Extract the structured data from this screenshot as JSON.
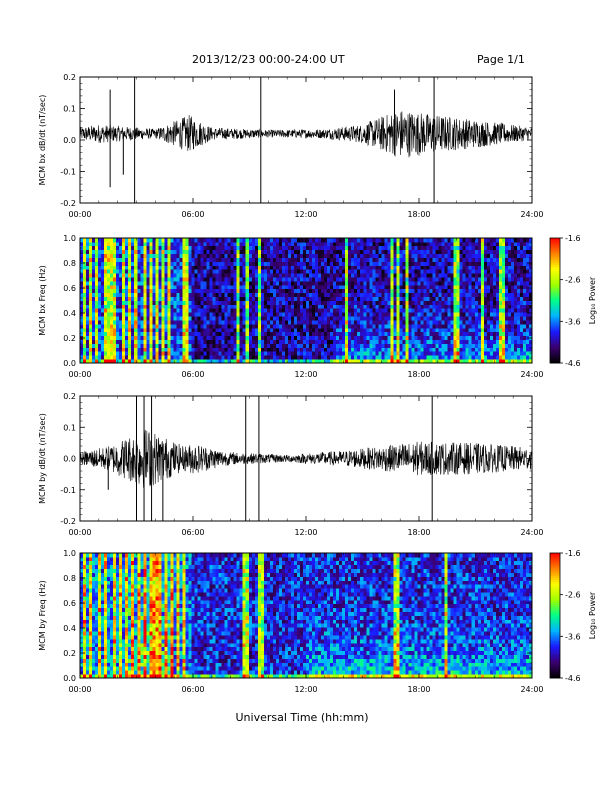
{
  "header": {
    "title": "2013/12/23  00:00-24:00 UT",
    "page": "Page 1/1"
  },
  "colors": {
    "trace": "#000000",
    "colormap": [
      "#000000",
      "#3a0070",
      "#1a1aff",
      "#00b4ff",
      "#00ff88",
      "#a0ff00",
      "#ffff00",
      "#ff8000",
      "#ff0000"
    ]
  },
  "chart_data": [
    {
      "type": "line",
      "title": "",
      "ylabel": "MCM bx dB/dt (nT/sec)",
      "xlabel": "",
      "xlim": [
        0,
        24
      ],
      "ylim": [
        -0.2,
        0.2
      ],
      "x_ticks": [
        "00:00",
        "06:00",
        "12:00",
        "18:00",
        "24:00"
      ],
      "y_ticks": [
        "0.2",
        "0.1",
        "0.0",
        "-0.1",
        "-0.2"
      ],
      "baseline": 0.02,
      "spikes": [
        {
          "x": 1.6,
          "y": 0.16
        },
        {
          "x": 1.6,
          "y": -0.15
        },
        {
          "x": 2.3,
          "y": -0.11
        },
        {
          "x": 2.9,
          "y": 0.2
        },
        {
          "x": 2.9,
          "y": -0.2
        },
        {
          "x": 9.6,
          "y": 0.2
        },
        {
          "x": 9.6,
          "y": -0.2
        },
        {
          "x": 16.7,
          "y": 0.16
        },
        {
          "x": 18.8,
          "y": 0.2
        },
        {
          "x": 18.8,
          "y": -0.2
        }
      ],
      "envelope": [
        {
          "x": 0,
          "amp": 0.02
        },
        {
          "x": 1.0,
          "amp": 0.03
        },
        {
          "x": 2.0,
          "amp": 0.025
        },
        {
          "x": 4.0,
          "amp": 0.015
        },
        {
          "x": 5.8,
          "amp": 0.06
        },
        {
          "x": 7.0,
          "amp": 0.02
        },
        {
          "x": 10.0,
          "amp": 0.012
        },
        {
          "x": 13.0,
          "amp": 0.015
        },
        {
          "x": 15.0,
          "amp": 0.03
        },
        {
          "x": 17.0,
          "amp": 0.08
        },
        {
          "x": 19.0,
          "amp": 0.06
        },
        {
          "x": 21.0,
          "amp": 0.045
        },
        {
          "x": 24.0,
          "amp": 0.02
        }
      ]
    },
    {
      "type": "heatmap",
      "title": "",
      "ylabel": "MCM bx Freq (Hz)",
      "xlabel": "",
      "xlim": [
        0,
        24
      ],
      "ylim": [
        0,
        1.0
      ],
      "x_ticks": [
        "00:00",
        "06:00",
        "12:00",
        "18:00",
        "24:00"
      ],
      "y_ticks": [
        "1.0",
        "0.8",
        "0.6",
        "0.4",
        "0.2",
        "0.0"
      ],
      "colorbar_label": "Log₁₀ Power",
      "colorbar_ticks": [
        "-1.6",
        "-2.6",
        "-3.6",
        "-4.6"
      ],
      "clim": [
        -4.6,
        -1.6
      ],
      "bright_columns": [
        0.3,
        0.6,
        0.9,
        1.3,
        1.6,
        1.9,
        2.3,
        2.7,
        3.0,
        3.4,
        3.8,
        4.1,
        4.4,
        4.7,
        5.6,
        8.4,
        8.9,
        9.5,
        14.1,
        16.6,
        16.9,
        17.3,
        20.0,
        21.4,
        22.4
      ],
      "background_level": -4.1,
      "lowfreq_enhancement": [
        {
          "x_start": 13.5,
          "x_end": 24.0,
          "level": -3.4
        }
      ]
    },
    {
      "type": "line",
      "title": "",
      "ylabel": "MCM by dB/dt (nT/sec)",
      "xlabel": "",
      "xlim": [
        0,
        24
      ],
      "ylim": [
        -0.2,
        0.2
      ],
      "x_ticks": [
        "00:00",
        "06:00",
        "12:00",
        "18:00",
        "24:00"
      ],
      "y_ticks": [
        "0.2",
        "0.1",
        "0.0",
        "-0.1",
        "-0.2"
      ],
      "baseline": 0.0,
      "spikes": [
        {
          "x": 1.5,
          "y": -0.1
        },
        {
          "x": 3.0,
          "y": 0.2
        },
        {
          "x": 3.0,
          "y": -0.2
        },
        {
          "x": 3.4,
          "y": 0.2
        },
        {
          "x": 3.4,
          "y": -0.2
        },
        {
          "x": 3.8,
          "y": 0.2
        },
        {
          "x": 3.8,
          "y": -0.2
        },
        {
          "x": 4.4,
          "y": -0.2
        },
        {
          "x": 8.8,
          "y": 0.2
        },
        {
          "x": 8.8,
          "y": -0.2
        },
        {
          "x": 9.5,
          "y": 0.2
        },
        {
          "x": 9.5,
          "y": -0.2
        },
        {
          "x": 18.7,
          "y": 0.2
        },
        {
          "x": 18.7,
          "y": -0.2
        }
      ],
      "envelope": [
        {
          "x": 0,
          "amp": 0.02
        },
        {
          "x": 1.5,
          "amp": 0.04
        },
        {
          "x": 3.5,
          "amp": 0.1
        },
        {
          "x": 5.5,
          "amp": 0.04
        },
        {
          "x": 6.0,
          "amp": 0.05
        },
        {
          "x": 8.0,
          "amp": 0.02
        },
        {
          "x": 11.0,
          "amp": 0.012
        },
        {
          "x": 14.0,
          "amp": 0.025
        },
        {
          "x": 16.0,
          "amp": 0.04
        },
        {
          "x": 18.0,
          "amp": 0.055
        },
        {
          "x": 21.0,
          "amp": 0.05
        },
        {
          "x": 24.0,
          "amp": 0.035
        }
      ]
    },
    {
      "type": "heatmap",
      "title": "",
      "ylabel": "MCM by Freq (Hz)",
      "xlabel": "Universal Time (hh:mm)",
      "xlim": [
        0,
        24
      ],
      "ylim": [
        0,
        1.0
      ],
      "x_ticks": [
        "00:00",
        "06:00",
        "12:00",
        "18:00",
        "24:00"
      ],
      "y_ticks": [
        "1.0",
        "0.8",
        "0.6",
        "0.4",
        "0.2",
        "0.0"
      ],
      "colorbar_label": "Log₁₀ Power",
      "colorbar_ticks": [
        "-1.6",
        "-2.6",
        "-3.6",
        "-4.6"
      ],
      "clim": [
        -4.6,
        -1.6
      ],
      "bright_columns": [
        0.2,
        0.5,
        1.0,
        1.4,
        1.8,
        2.1,
        2.5,
        2.8,
        3.1,
        3.4,
        3.7,
        4.0,
        4.3,
        4.6,
        4.9,
        5.2,
        5.5,
        8.7,
        8.9,
        9.6,
        16.8,
        19.5
      ],
      "background_level": -3.9,
      "lowfreq_enhancement": [
        {
          "x_start": 12.0,
          "x_end": 24.0,
          "level": -3.2
        }
      ],
      "hot_band": {
        "x_start": 2.5,
        "x_end": 5.0,
        "level": -2.0
      }
    }
  ]
}
